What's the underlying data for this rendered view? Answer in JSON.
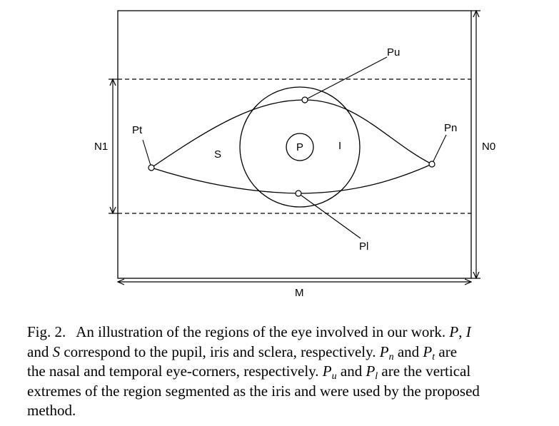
{
  "figure": {
    "labels": {
      "pu": "Pu",
      "pt": "Pt",
      "pn": "Pn",
      "pl": "Pl",
      "p": "P",
      "i": "I",
      "s": "S",
      "n1": "N1",
      "n0": "N0",
      "m": "M"
    }
  },
  "caption": {
    "fig_label": "Fig. 2.",
    "line1_text": "An illustration of the regions of the eye involved in our work. ",
    "line1_p": "P",
    "line1_tail": ", ",
    "line1_i": "I",
    "line2_and": "and ",
    "line2_s": "S",
    "line2_text": " correspond to the pupil, iris and sclera, respectively. ",
    "line2_pn": "P",
    "line2_pn_sub": "n",
    "line2_and2": " and ",
    "line2_pt": "P",
    "line2_pt_sub": "t",
    "line2_are": " are",
    "line3_text": "the nasal and temporal eye-corners, respectively. ",
    "line3_pu": "P",
    "line3_pu_sub": "u",
    "line3_and": " and ",
    "line3_pl": "P",
    "line3_pl_sub": "l",
    "line3_tail": " are the vertical",
    "line4_text": "extremes of the region segmented as the iris and were used by the proposed",
    "line5_text": "method."
  }
}
